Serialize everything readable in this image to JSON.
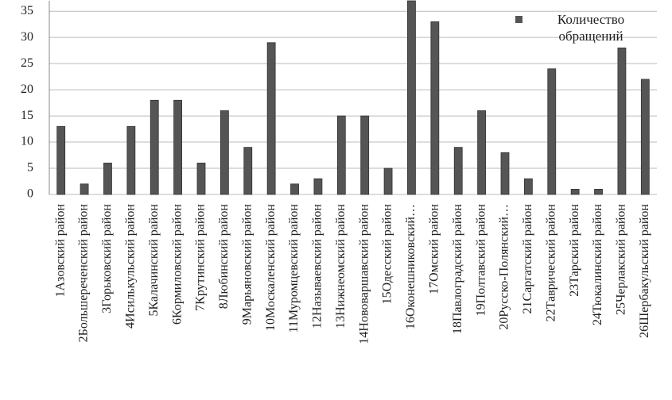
{
  "chart_data": {
    "type": "bar",
    "categories": [
      "1Азовский район",
      "2Большереченский район",
      "3Горьковский район",
      "4Исилькульский район",
      "5Калачинский район",
      "6Кормиловский район",
      "7Крутинский район",
      "8Любинский район",
      "9Марьяновский район",
      "10Москаленский район",
      "11Муромцевский район",
      "12Называевский район",
      "13Нижнеомский район",
      "14Нововаршавский район",
      "15Одесский район",
      "16Оконешниковский…",
      "17Омский район",
      "18Павлоградский район",
      "19Полтавский район",
      "20Русско-Полянский…",
      "21Саргатский район",
      "22Таврический район",
      "23Тарский район",
      "24Тюкалинский район",
      "25Черлакский район",
      "26Шербакульский район"
    ],
    "series": [
      {
        "name": "Количество обращений",
        "color": "#555555",
        "values": [
          13,
          2,
          6,
          13,
          18,
          18,
          6,
          16,
          9,
          29,
          2,
          3,
          15,
          15,
          5,
          37,
          33,
          9,
          16,
          8,
          3,
          24,
          1,
          1,
          28,
          22
        ]
      }
    ],
    "ylim": [
      0,
      37
    ],
    "yticks": [
      0,
      5,
      10,
      15,
      20,
      25,
      30,
      35
    ],
    "grid": true
  }
}
